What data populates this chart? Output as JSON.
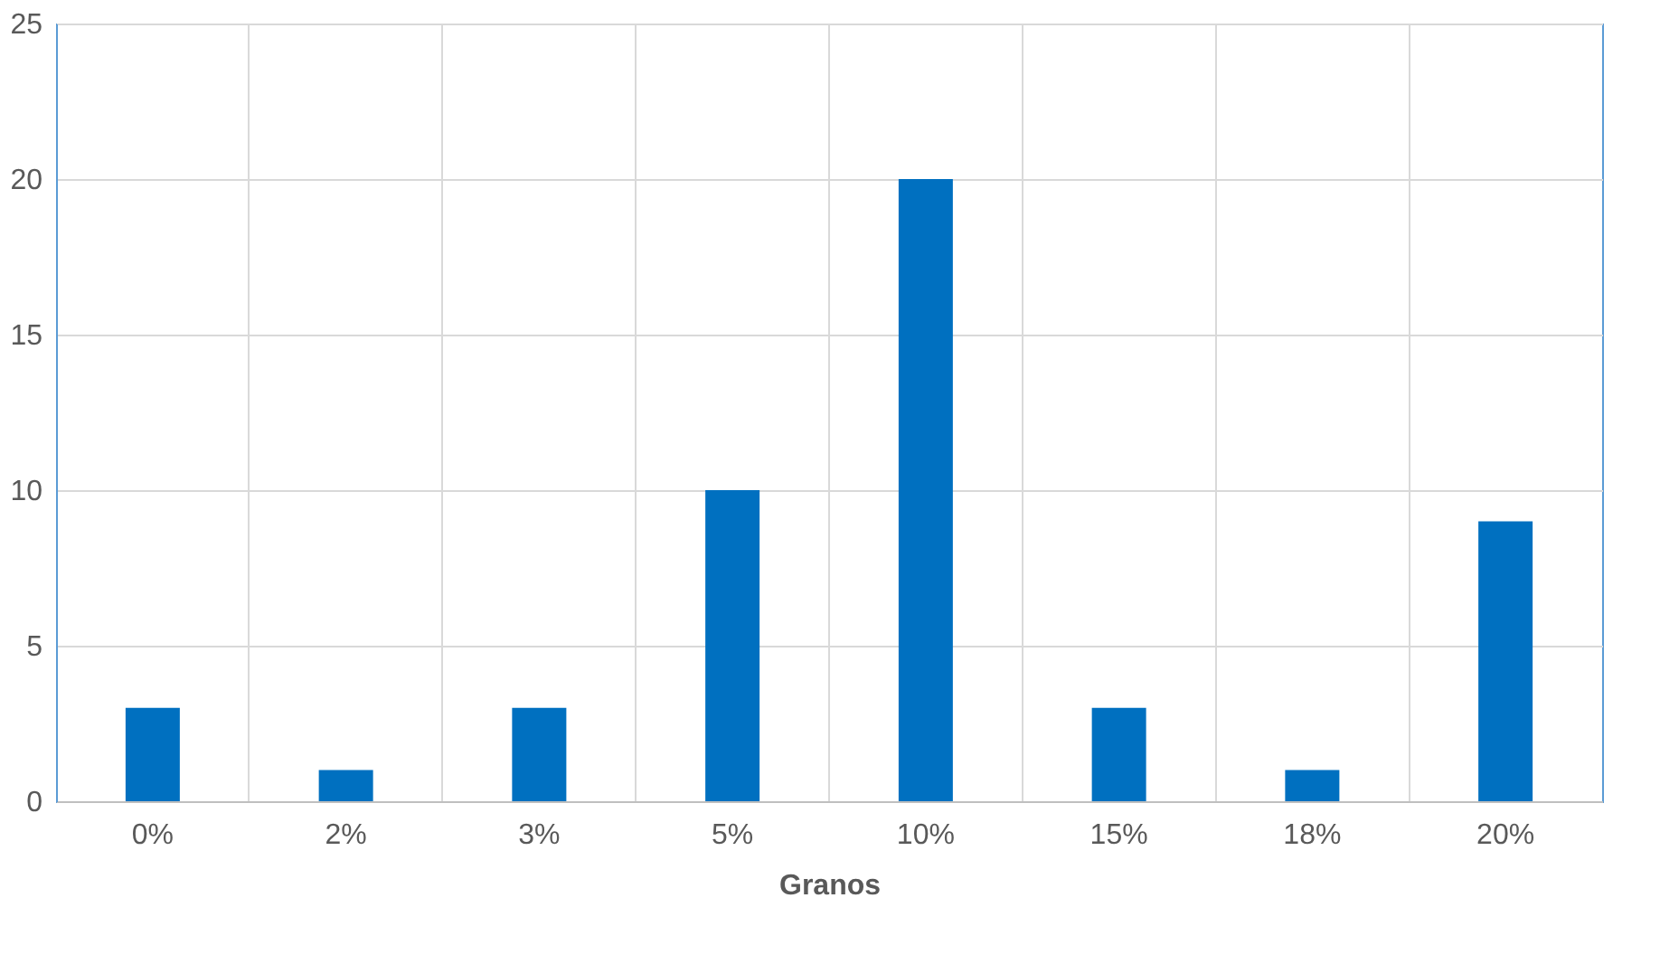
{
  "chart_data": {
    "type": "bar",
    "xlabel": "Granos",
    "categories": [
      "0%",
      "2%",
      "3%",
      "5%",
      "10%",
      "15%",
      "18%",
      "20%"
    ],
    "values": [
      3,
      1,
      3,
      10,
      20,
      3,
      1,
      9
    ],
    "color": "#0070c0",
    "ylim": [
      0,
      25
    ],
    "yticks": [
      0,
      5,
      10,
      15,
      20,
      25
    ],
    "grid": true
  }
}
